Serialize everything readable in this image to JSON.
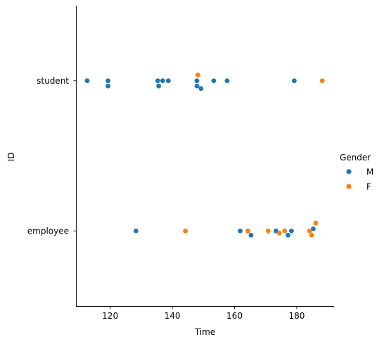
{
  "chart_data": {
    "type": "scatter",
    "title": "",
    "xlabel": "Time",
    "ylabel": "ID",
    "xlim": [
      109,
      192
    ],
    "xticks": [
      120,
      140,
      160,
      180
    ],
    "categories": [
      "student",
      "employee"
    ],
    "legend": {
      "title": "Gender",
      "placement": "right"
    },
    "grid": false,
    "series": [
      {
        "name": "M",
        "color": "#1f77b4",
        "points": [
          {
            "x": 112.6,
            "cat": "student",
            "jitter": 0.0
          },
          {
            "x": 119.3,
            "cat": "student",
            "jitter": 0.0
          },
          {
            "x": 119.3,
            "cat": "student",
            "jitter": -0.035
          },
          {
            "x": 135.3,
            "cat": "student",
            "jitter": 0.0
          },
          {
            "x": 135.6,
            "cat": "student",
            "jitter": -0.035
          },
          {
            "x": 136.9,
            "cat": "student",
            "jitter": 0.0
          },
          {
            "x": 138.7,
            "cat": "student",
            "jitter": 0.0
          },
          {
            "x": 147.9,
            "cat": "student",
            "jitter": 0.0
          },
          {
            "x": 147.9,
            "cat": "student",
            "jitter": -0.035
          },
          {
            "x": 149.2,
            "cat": "student",
            "jitter": -0.052
          },
          {
            "x": 153.3,
            "cat": "student",
            "jitter": 0.0
          },
          {
            "x": 157.6,
            "cat": "student",
            "jitter": 0.0
          },
          {
            "x": 179.2,
            "cat": "student",
            "jitter": 0.0
          },
          {
            "x": 128.3,
            "cat": "employee",
            "jitter": 0.0
          },
          {
            "x": 161.8,
            "cat": "employee",
            "jitter": 0.0
          },
          {
            "x": 165.3,
            "cat": "employee",
            "jitter": -0.028
          },
          {
            "x": 173.3,
            "cat": "employee",
            "jitter": 0.0
          },
          {
            "x": 177.2,
            "cat": "employee",
            "jitter": -0.028
          },
          {
            "x": 178.3,
            "cat": "employee",
            "jitter": 0.0
          },
          {
            "x": 185.3,
            "cat": "employee",
            "jitter": 0.014
          }
        ]
      },
      {
        "name": "F",
        "color": "#ff7f0e",
        "points": [
          {
            "x": 148.2,
            "cat": "student",
            "jitter": 0.038
          },
          {
            "x": 188.2,
            "cat": "student",
            "jitter": 0.0
          },
          {
            "x": 144.2,
            "cat": "employee",
            "jitter": 0.0
          },
          {
            "x": 164.3,
            "cat": "employee",
            "jitter": 0.0
          },
          {
            "x": 170.8,
            "cat": "employee",
            "jitter": 0.0
          },
          {
            "x": 174.4,
            "cat": "employee",
            "jitter": -0.014
          },
          {
            "x": 176.1,
            "cat": "employee",
            "jitter": 0.0
          },
          {
            "x": 184.1,
            "cat": "employee",
            "jitter": 0.0
          },
          {
            "x": 184.8,
            "cat": "employee",
            "jitter": -0.028
          },
          {
            "x": 186.1,
            "cat": "employee",
            "jitter": 0.052
          }
        ]
      }
    ]
  }
}
